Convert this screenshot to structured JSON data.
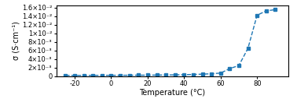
{
  "chart_data": {
    "type": "line",
    "x": [
      -25,
      -20,
      -15,
      -10,
      -5,
      0,
      5,
      10,
      15,
      20,
      25,
      30,
      35,
      40,
      45,
      50,
      55,
      60,
      65,
      70,
      75,
      80,
      85,
      90
    ],
    "values": [
      0.00021,
      0.000215,
      0.00022,
      0.000225,
      0.00023,
      0.000235,
      0.00024,
      0.00025,
      0.00026,
      0.00027,
      0.00029,
      0.00031,
      0.00034,
      0.00038,
      0.00043,
      0.0005,
      0.0006,
      0.00075,
      0.0018,
      0.0025,
      0.0065,
      0.0142,
      0.0152,
      0.0155
    ],
    "xlabel": "Temperature (°C)",
    "ylabel": "σ (S·cm⁻¹)",
    "xlim": [
      -30,
      97
    ],
    "ylim": [
      0,
      0.0165
    ],
    "xticks": [
      -20,
      0,
      20,
      40,
      60,
      80
    ],
    "yticks": [
      0,
      {
        "value": 0.002,
        "label": "2×10⁻³"
      },
      {
        "value": 0.004,
        "label": "4×10⁻³"
      },
      {
        "value": 0.006,
        "label": "6×10⁻³"
      },
      {
        "value": 0.008,
        "label": "8×10⁻³"
      },
      {
        "value": 0.01,
        "label": "1×10⁻²"
      },
      {
        "value": 0.012,
        "label": "1.2×10⁻²"
      },
      {
        "value": 0.014,
        "label": "1.4×10⁻²"
      },
      {
        "value": 0.016,
        "label": "1.6×10⁻²"
      }
    ],
    "marker": "square",
    "line_style": "dashed",
    "grid": false
  }
}
